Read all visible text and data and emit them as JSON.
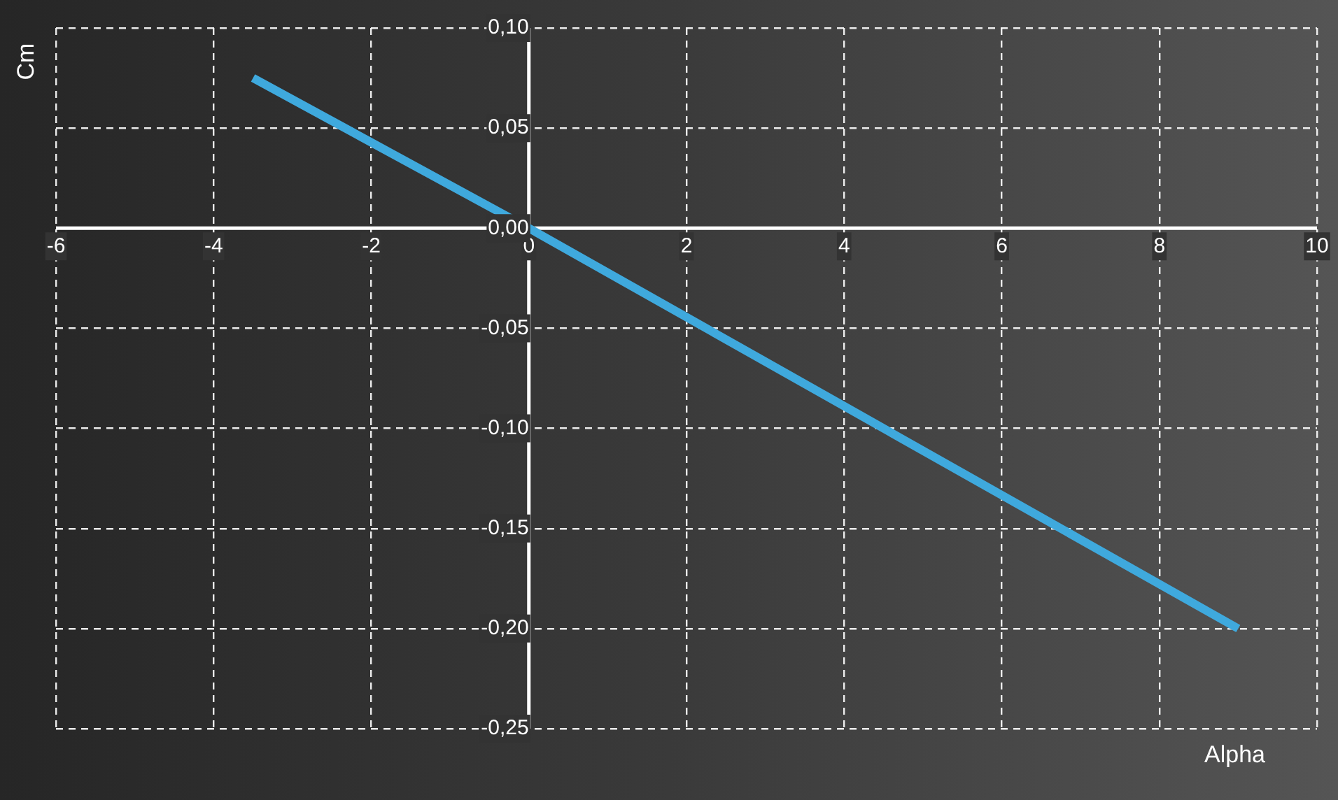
{
  "chart_data": {
    "type": "line",
    "xlabel": "Alpha",
    "ylabel": "Cm",
    "x": [
      -3.5,
      0,
      9
    ],
    "series": [
      {
        "color": "#3fa9dd",
        "values": [
          0.075,
          0.0,
          -0.2
        ]
      }
    ],
    "xlim": [
      -6,
      10
    ],
    "xticks": [
      -6,
      -4,
      -2,
      0,
      2,
      4,
      6,
      8,
      10
    ],
    "ylim": [
      -0.25,
      0.1
    ],
    "yticks": [
      {
        "value": -0.25,
        "label": "-0,25"
      },
      {
        "value": -0.2,
        "label": "-0,20"
      },
      {
        "value": -0.15,
        "label": "-0,15"
      },
      {
        "value": -0.1,
        "label": "-0,10"
      },
      {
        "value": -0.05,
        "label": "-0,05"
      },
      {
        "value": 0,
        "label": "0,00"
      },
      {
        "value": 0.05,
        "label": "0,05"
      },
      {
        "value": 0.1,
        "label": "0,10"
      }
    ],
    "grid": true,
    "legend": false,
    "marker": "none",
    "line_style": "solid"
  }
}
